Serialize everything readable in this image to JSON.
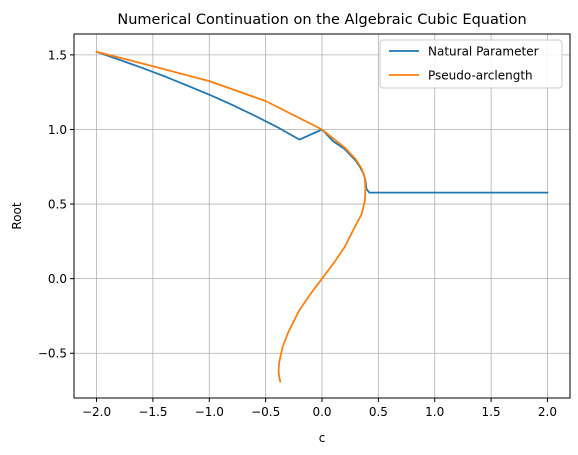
{
  "chart_data": {
    "type": "line",
    "title": "Numerical Continuation on the Algebraic Cubic Equation",
    "xlabel": "c",
    "ylabel": "Root",
    "xlim": [
      -2.2,
      2.2
    ],
    "ylim": [
      -0.8,
      1.64
    ],
    "xticks": [
      "−2.0",
      "−1.5",
      "−1.0",
      "−0.5",
      "0.0",
      "0.5",
      "1.0",
      "1.5",
      "2.0"
    ],
    "xtick_values": [
      -2.0,
      -1.5,
      -1.0,
      -0.5,
      0.0,
      0.5,
      1.0,
      1.5,
      2.0
    ],
    "yticks": [
      "−0.5",
      "0.0",
      "0.5",
      "1.0",
      "1.5"
    ],
    "ytick_values": [
      -0.5,
      0.0,
      0.5,
      1.0,
      1.5
    ],
    "grid": true,
    "legend_position": "top-right",
    "series": [
      {
        "name": "Natural Parameter",
        "color": "#1f77b4",
        "x": [
          -2.0,
          -1.8,
          -1.6,
          -1.4,
          -1.2,
          -1.0,
          -0.8,
          -0.6,
          -0.4,
          -0.2,
          0.0,
          0.1,
          0.2,
          0.3,
          0.34,
          0.37,
          0.385,
          0.395,
          0.42,
          0.5,
          1.0,
          1.5,
          2.0
        ],
        "y": [
          1.521,
          1.468,
          1.414,
          1.357,
          1.296,
          1.233,
          1.166,
          1.094,
          1.017,
          0.932,
          1.0,
          0.92,
          0.87,
          0.79,
          0.745,
          0.7,
          0.66,
          0.6,
          0.577,
          0.577,
          0.577,
          0.577,
          0.577
        ]
      },
      {
        "name": "Pseudo-arclength",
        "color": "#ff7f0e",
        "x": [
          -2.0,
          -1.5,
          -1.0,
          -0.5,
          0.0,
          0.2,
          0.3,
          0.35,
          0.38,
          0.385,
          0.38,
          0.35,
          0.3,
          0.2,
          0.1,
          0.0,
          -0.1,
          -0.2,
          -0.3,
          -0.35,
          -0.38,
          -0.385,
          -0.38,
          -0.37
        ],
        "y": [
          1.521,
          1.424,
          1.324,
          1.191,
          1.0,
          0.88,
          0.8,
          0.74,
          0.68,
          0.6,
          0.52,
          0.43,
          0.36,
          0.21,
          0.1,
          0.0,
          -0.1,
          -0.21,
          -0.36,
          -0.46,
          -0.56,
          -0.62,
          -0.66,
          -0.69
        ]
      }
    ]
  }
}
